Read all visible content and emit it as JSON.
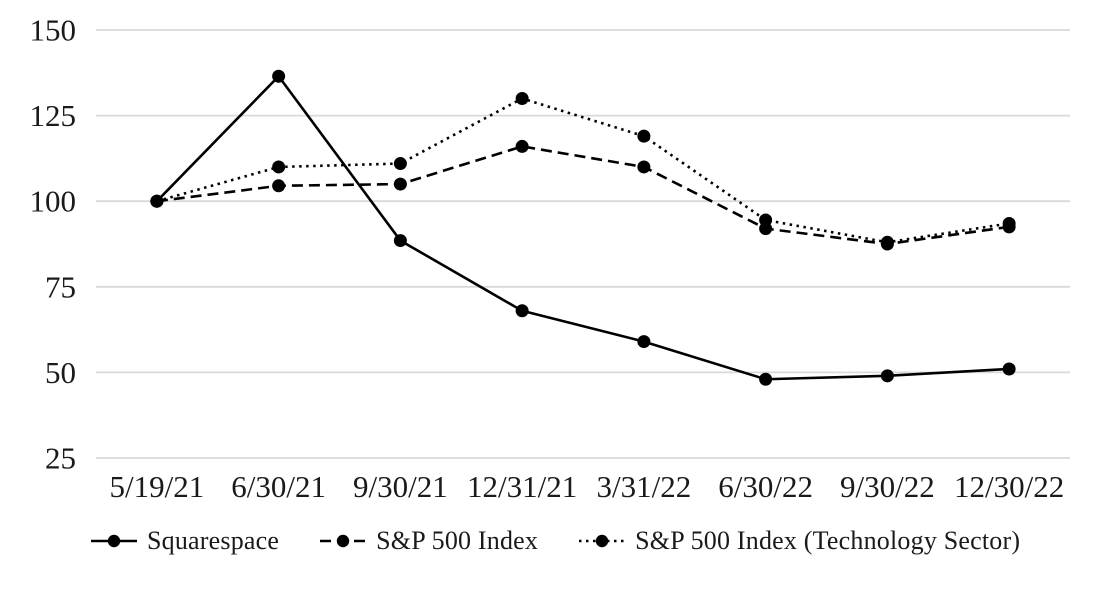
{
  "chart_data": {
    "type": "line",
    "title": "",
    "xlabel": "",
    "ylabel": "",
    "categories": [
      "5/19/21",
      "6/30/21",
      "9/30/21",
      "12/31/21",
      "3/31/22",
      "6/30/22",
      "9/30/22",
      "12/30/22"
    ],
    "series": [
      {
        "name": "Squarespace",
        "line_style": "solid",
        "marker": "circle",
        "color": "#000000",
        "values": [
          100,
          136.5,
          88.5,
          68,
          59,
          48,
          49,
          51
        ]
      },
      {
        "name": "S&P 500 Index",
        "line_style": "dashed",
        "marker": "circle",
        "color": "#000000",
        "values": [
          100,
          104.5,
          105,
          116,
          110,
          92,
          87.5,
          92.5
        ]
      },
      {
        "name": "S&P 500 Index (Technology Sector)",
        "line_style": "dotted",
        "marker": "circle",
        "color": "#000000",
        "values": [
          100,
          110,
          111,
          130,
          119,
          94.5,
          88,
          93.5
        ]
      }
    ],
    "y_axis": {
      "min": 25,
      "max": 150,
      "ticks": [
        150,
        125,
        100,
        75,
        50,
        25
      ]
    },
    "grid": {
      "horizontal": true,
      "vertical": false,
      "color": "#d9d9d9"
    },
    "legend": {
      "position": "bottom"
    },
    "layout": {
      "category_placement": "between-gridline-ends"
    }
  }
}
